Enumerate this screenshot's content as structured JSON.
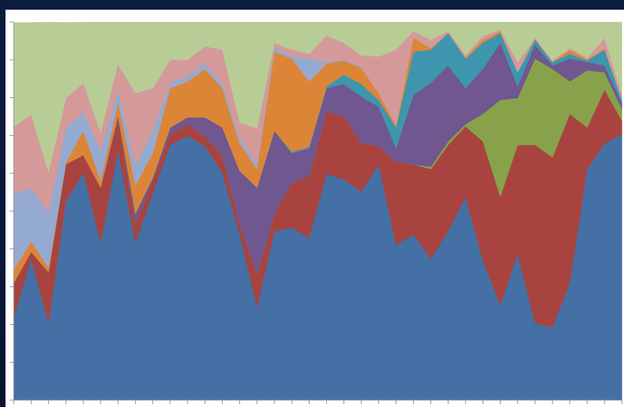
{
  "chart_data": {
    "type": "stacked-area",
    "categories": [
      null,
      null,
      null,
      null,
      null,
      null,
      null,
      null,
      null,
      null,
      null,
      null,
      null,
      null,
      null,
      null,
      null,
      null,
      null,
      null,
      null,
      null,
      null,
      null,
      null,
      null,
      null,
      null,
      null,
      null,
      null,
      null,
      null,
      null,
      null,
      null
    ],
    "series": [
      {
        "color": "#4470a5",
        "values": [
          21.9,
          37.4,
          20.4,
          52.6,
          60.2,
          41.6,
          66.1,
          41.6,
          54.7,
          67.5,
          69.9,
          67.2,
          60.2,
          43.8,
          24.6,
          44.7,
          45.6,
          42.9,
          59.9,
          58.4,
          55.1,
          62.4,
          41.1,
          43.8,
          37.4,
          44.7,
          53.8,
          36.9,
          25.2,
          38.7,
          20.4,
          19.2,
          31,
          61.1,
          67.9,
          70.3
        ]
      },
      {
        "color": "#a9433f",
        "values": [
          9.1,
          1.8,
          13.4,
          9.8,
          4.6,
          14.6,
          8.4,
          4.9,
          3.3,
          2.8,
          3.1,
          2.5,
          4.6,
          2.7,
          8.6,
          4.6,
          11.9,
          16.4,
          16.4,
          16.8,
          12.8,
          4.8,
          21.9,
          18.6,
          23.7,
          22.8,
          18.6,
          31.5,
          28.6,
          28.8,
          47.1,
          45,
          44.7,
          11,
          14.2,
          3.6
        ]
      },
      {
        "color": "#87a24b",
        "values": [
          0,
          0,
          0,
          0,
          0,
          0,
          0,
          0,
          0,
          0,
          0,
          0,
          0,
          0,
          0,
          0,
          0,
          0,
          0,
          0,
          0,
          0,
          0,
          0,
          0.6,
          0.9,
          0.6,
          7.3,
          25.6,
          12.4,
          22.8,
          23.4,
          8.6,
          15.1,
          4.6,
          3.1
        ]
      },
      {
        "color": "#70578f",
        "values": [
          0,
          0,
          0,
          0,
          0,
          0,
          0.7,
          2.8,
          0.8,
          1.8,
          1.8,
          5.1,
          7.3,
          14.1,
          23,
          21.9,
          7.8,
          7.3,
          6.2,
          8.4,
          12.4,
          10.4,
          3.6,
          18.3,
          22.2,
          20.1,
          9.5,
          11.9,
          15.1,
          3.1,
          3.7,
          0.9,
          6,
          2.2,
          1.8,
          1.5
        ]
      },
      {
        "color": "#3d96ae",
        "values": [
          0,
          0,
          0,
          0,
          0,
          0,
          0,
          0,
          0,
          0,
          0,
          0,
          0,
          0,
          0,
          0,
          0.4,
          0.4,
          0.5,
          2.5,
          3.3,
          1.8,
          5.5,
          11.5,
          8.8,
          8.6,
          7.8,
          6.9,
          2.6,
          3.7,
          1.3,
          0.9,
          1.3,
          0.4,
          4.2,
          0.9
        ]
      },
      {
        "color": "#dd8537",
        "values": [
          3.6,
          2.7,
          1.2,
          0.5,
          6.4,
          1.8,
          3.6,
          7.6,
          6.5,
          10.4,
          9.5,
          12.8,
          10.4,
          7.3,
          4.9,
          21,
          24.6,
          17.3,
          6.1,
          3.7,
          4.3,
          1.8,
          0.5,
          3.6,
          0.4,
          0,
          0.4,
          0.8,
          0.5,
          0,
          0.3,
          0,
          1.1,
          0.3,
          0.4,
          0
        ]
      },
      {
        "color": "#95aad1",
        "values": [
          20,
          14.2,
          14.6,
          9.1,
          4.9,
          8.1,
          3,
          5.1,
          5.9,
          1.4,
          1.5,
          1.5,
          1.1,
          1.4,
          1.3,
          1.2,
          0.6,
          6,
          0.3,
          0.3,
          0.2,
          0,
          0,
          0,
          0,
          0,
          0,
          0,
          0,
          0,
          0,
          0,
          0,
          0,
          0,
          0
        ]
      },
      {
        "color": "#d49a9a",
        "values": [
          17.7,
          19.5,
          10.6,
          7.8,
          7.8,
          4.7,
          7.1,
          19.2,
          11.3,
          6.1,
          4.2,
          4.5,
          9.1,
          4.1,
          9.5,
          1.1,
          1.8,
          1.3,
          7,
          4.4,
          3.1,
          9.7,
          20.1,
          1.8,
          2.2,
          0.5,
          0.5,
          1.1,
          0.4,
          2.7,
          0.2,
          0.4,
          0.4,
          0.4,
          2.7,
          1.3
        ]
      },
      {
        "color": "#b8cc95",
        "values": [
          27.6,
          24.3,
          39.8,
          20.1,
          16.1,
          29.2,
          11.1,
          18.8,
          17.5,
          10,
          10,
          6.4,
          7.3,
          26.6,
          28.1,
          5.5,
          7.3,
          8.4,
          3.6,
          5.5,
          8.8,
          9.1,
          7.3,
          2.4,
          4.7,
          2.4,
          8.8,
          3.6,
          2,
          10.6,
          4.2,
          10.2,
          6.9,
          9.5,
          4.2,
          19.3
        ]
      }
    ],
    "ylim": [
      0,
      100
    ],
    "yticks": [
      0,
      10,
      20,
      30,
      40,
      50,
      60,
      70,
      80,
      90,
      100
    ],
    "grid": false
  }
}
